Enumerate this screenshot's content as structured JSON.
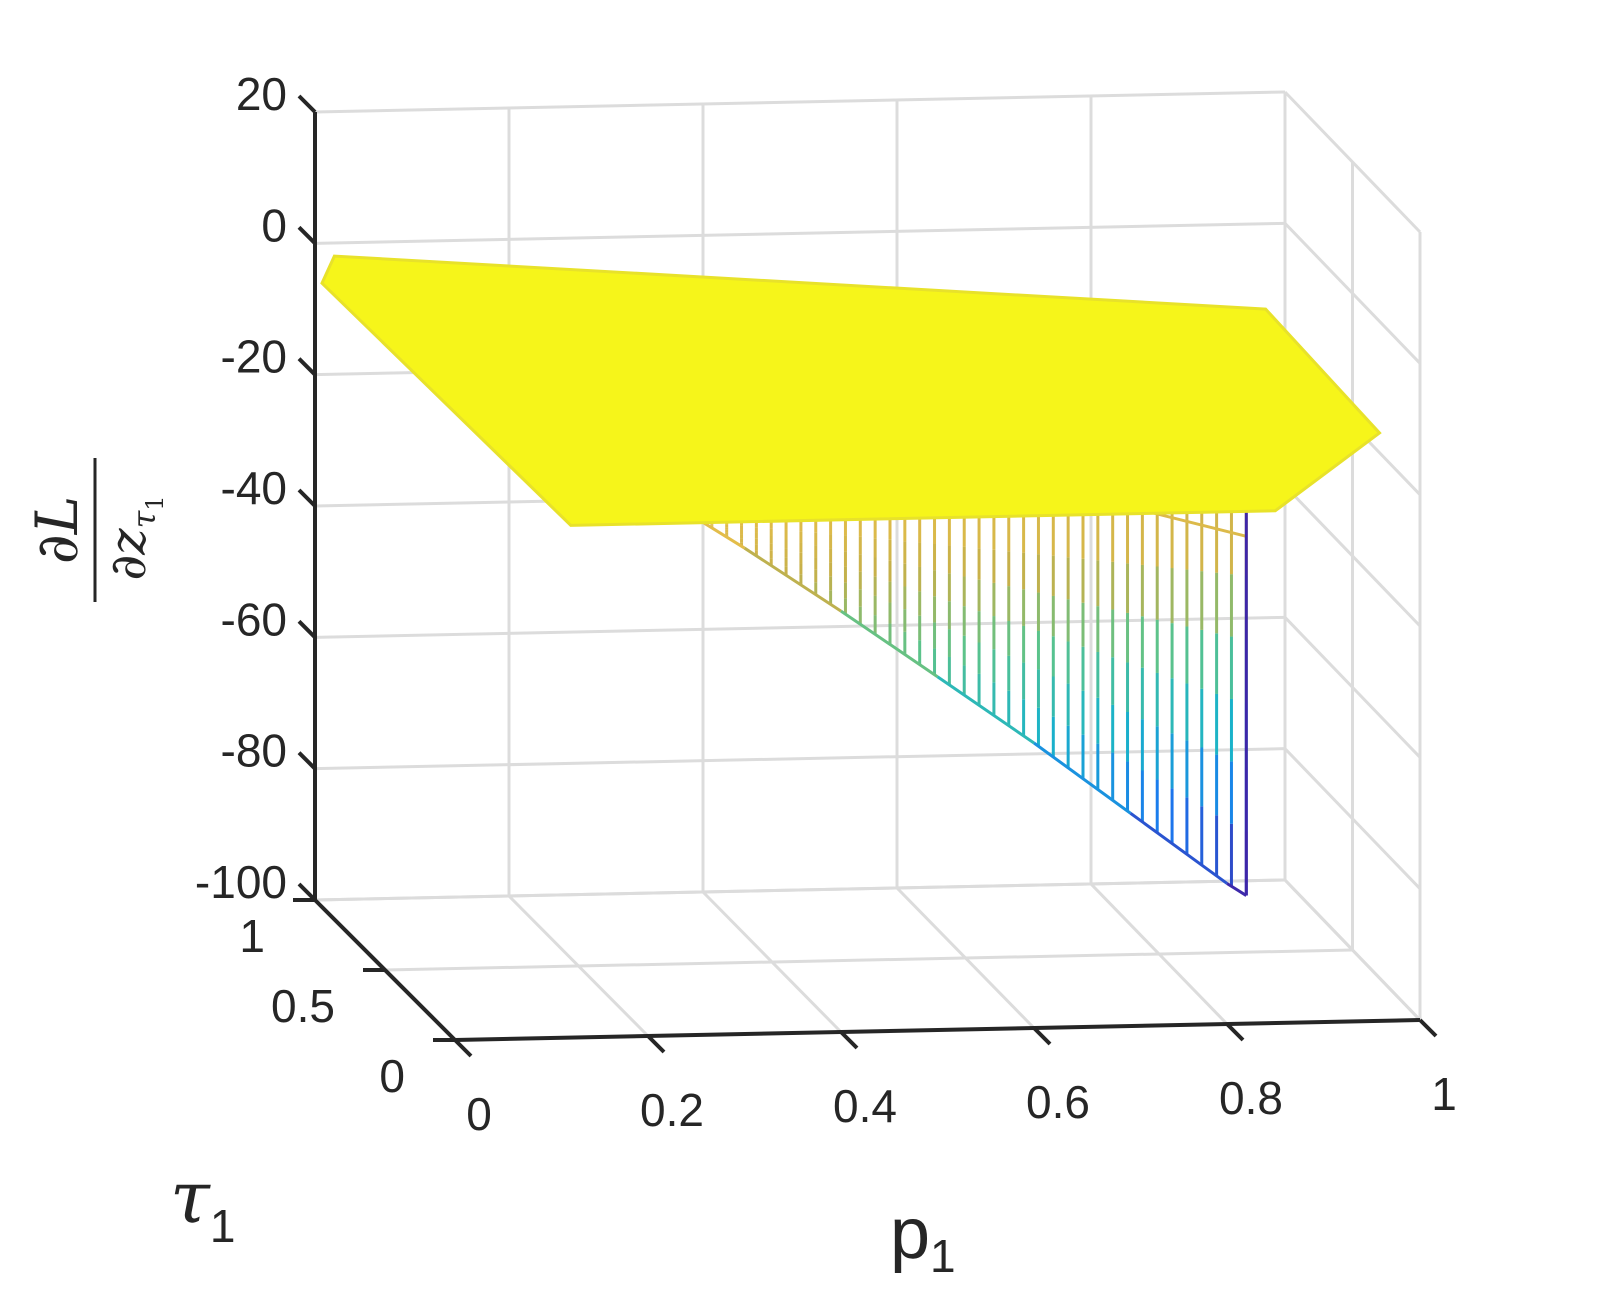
{
  "chart_data": {
    "type": "surface",
    "xlabel": {
      "base": "p",
      "sub": "1"
    },
    "ylabel": {
      "base": "τ",
      "sub": "1"
    },
    "zlabel": {
      "num": "∂L",
      "den_base": "∂z",
      "den_sub1": "τ",
      "den_sub2": "1"
    },
    "xlim": [
      0,
      1
    ],
    "ylim": [
      0,
      1
    ],
    "zlim": [
      -100,
      20
    ],
    "x_ticks": [
      "0",
      "0.2",
      "0.4",
      "0.6",
      "0.8",
      "1"
    ],
    "y_ticks": [
      "0",
      "0.5",
      "1"
    ],
    "z_ticks": [
      "20",
      "0",
      "-20",
      "-40",
      "-60",
      "-80",
      "-100"
    ],
    "grid": true,
    "colormap": "parula",
    "colors": [
      "#3e26a8",
      "#1a79f0",
      "#1ab3c9",
      "#5bc38b",
      "#c6b04a",
      "#f0c34a",
      "#f9fa14"
    ],
    "surface": {
      "front_edge_tau0": [
        [
          0,
          0
        ],
        [
          0.1,
          -7.9
        ],
        [
          0.2,
          -16.6
        ],
        [
          0.3,
          -26.0
        ],
        [
          0.4,
          -35.9
        ],
        [
          0.5,
          -46.2
        ],
        [
          0.6,
          -56.6
        ],
        [
          0.7,
          -67.6
        ],
        [
          0.8,
          -78.6
        ],
        [
          0.82,
          -80.5
        ]
      ],
      "mid_line": [
        [
          0.1,
          -12
        ],
        [
          0.3,
          -14.5
        ],
        [
          0.5,
          -17.5
        ],
        [
          0.7,
          -21
        ],
        [
          0.82,
          -25.8
        ]
      ],
      "upper_line": [
        [
          0.14,
          -8.5
        ],
        [
          0.4,
          -12
        ],
        [
          0.6,
          -15
        ],
        [
          0.82,
          -17.2
        ]
      ],
      "top_surface_value_approx": -5
    }
  }
}
